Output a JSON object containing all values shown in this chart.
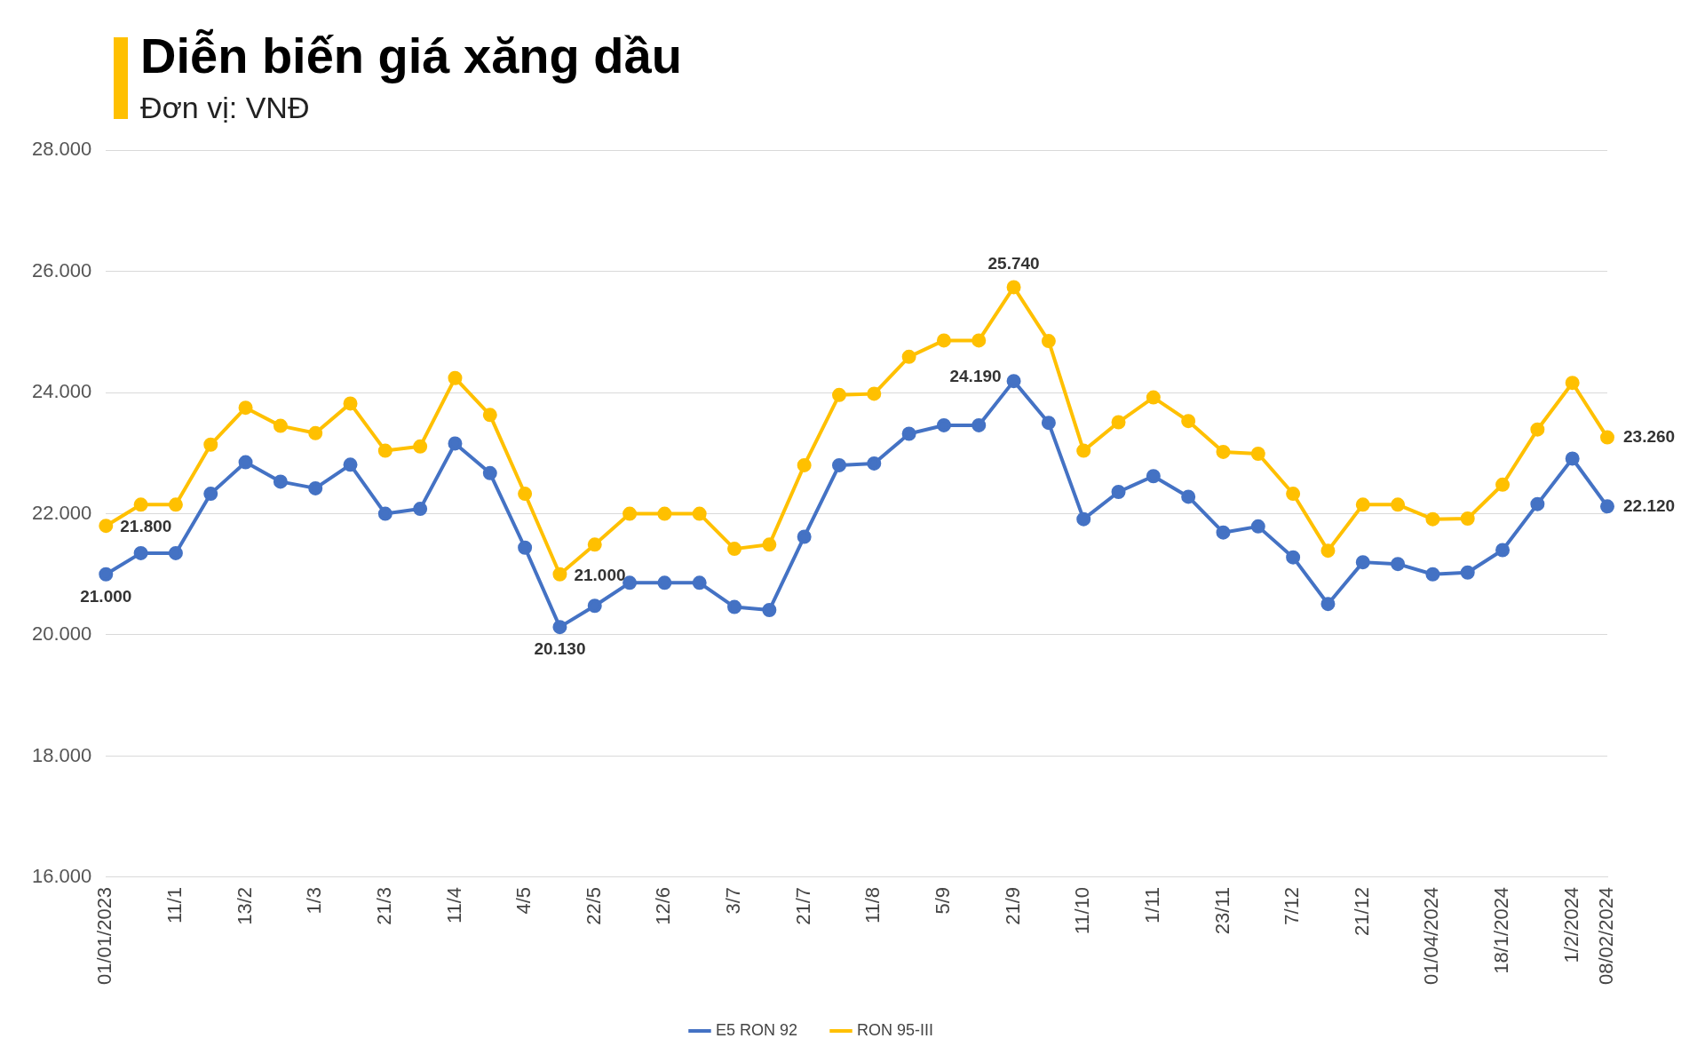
{
  "chart_data": {
    "type": "line",
    "title": "Diễn biến giá xăng dầu",
    "subtitle": "Đơn vị: VNĐ",
    "categories": [
      "01/01/2023",
      null,
      "11/1",
      null,
      "13/2",
      null,
      "1/3",
      null,
      "21/3",
      null,
      "11/4",
      null,
      "4/5",
      null,
      "22/5",
      null,
      "12/6",
      null,
      "3/7",
      null,
      "21/7",
      null,
      "11/8",
      null,
      "5/9",
      null,
      "21/9",
      null,
      "11/10",
      null,
      "1/11",
      null,
      "23/11",
      null,
      "7/12",
      null,
      "21/12",
      null,
      "01/04/2024",
      null,
      "18/1/2024",
      null,
      "1/2/2024",
      "08/02/2024"
    ],
    "series": [
      {
        "name": "E5 RON 92",
        "color": "#4472c4",
        "values": [
          21000,
          21350,
          21350,
          22330,
          22850,
          22530,
          22420,
          22810,
          22000,
          22080,
          23160,
          22670,
          21440,
          20130,
          20480,
          20860,
          20860,
          20860,
          20460,
          20410,
          21620,
          22800,
          22830,
          23320,
          23460,
          23460,
          24190,
          23500,
          21910,
          22360,
          22620,
          22280,
          21690,
          21790,
          21280,
          20510,
          21200,
          21170,
          21000,
          21030,
          21400,
          22160,
          22910,
          22120
        ],
        "value_labels": [
          "21.000",
          null,
          null,
          null,
          null,
          null,
          null,
          null,
          null,
          null,
          null,
          null,
          null,
          "20.130",
          null,
          null,
          null,
          null,
          null,
          null,
          null,
          null,
          null,
          null,
          null,
          null,
          "24.190",
          null,
          null,
          null,
          null,
          null,
          null,
          null,
          null,
          null,
          null,
          null,
          null,
          null,
          null,
          null,
          null,
          "22.120"
        ]
      },
      {
        "name": "RON 95-III",
        "color": "#ffc000",
        "values": [
          21800,
          22150,
          22150,
          23140,
          23750,
          23450,
          23330,
          23820,
          23040,
          23110,
          24240,
          23630,
          22330,
          21000,
          21490,
          22000,
          22000,
          22000,
          21420,
          21490,
          22800,
          23960,
          23980,
          24590,
          24860,
          24860,
          25740,
          24850,
          23040,
          23510,
          23920,
          23530,
          23020,
          22990,
          22330,
          21390,
          22150,
          22150,
          21910,
          21920,
          22480,
          23390,
          24160,
          23260
        ],
        "value_labels": [
          "21.800",
          null,
          null,
          null,
          null,
          null,
          null,
          null,
          null,
          null,
          null,
          null,
          null,
          "21.000",
          null,
          null,
          null,
          null,
          null,
          null,
          null,
          null,
          null,
          null,
          null,
          null,
          "25.740",
          null,
          null,
          null,
          null,
          null,
          null,
          null,
          null,
          null,
          null,
          null,
          null,
          null,
          null,
          null,
          null,
          "23.260"
        ]
      }
    ],
    "ylim": [
      16000,
      28000
    ],
    "yticks": [
      {
        "value": 16000,
        "label": "16.000"
      },
      {
        "value": 18000,
        "label": "18.000"
      },
      {
        "value": 20000,
        "label": "20.000"
      },
      {
        "value": 22000,
        "label": "22.000"
      },
      {
        "value": 24000,
        "label": "24.000"
      },
      {
        "value": 26000,
        "label": "26.000"
      },
      {
        "value": 28000,
        "label": "28.000"
      }
    ],
    "grid": "y",
    "legend": "bottom",
    "marker": "circle",
    "line_style": "solid"
  }
}
